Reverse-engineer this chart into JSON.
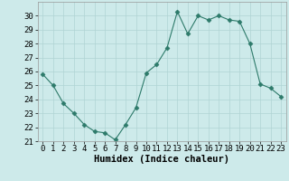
{
  "x": [
    0,
    1,
    2,
    3,
    4,
    5,
    6,
    7,
    8,
    9,
    10,
    11,
    12,
    13,
    14,
    15,
    16,
    17,
    18,
    19,
    20,
    21,
    22,
    23
  ],
  "y": [
    25.8,
    25.0,
    23.7,
    23.0,
    22.2,
    21.7,
    21.6,
    21.1,
    22.2,
    23.4,
    25.9,
    26.5,
    27.7,
    30.3,
    28.7,
    30.0,
    29.7,
    30.0,
    29.7,
    29.6,
    28.0,
    25.1,
    24.8,
    24.2
  ],
  "line_color": "#2d7a6a",
  "marker": "D",
  "marker_size": 2.5,
  "bg_color": "#cdeaea",
  "grid_color": "#b0d4d4",
  "xlabel": "Humidex (Indice chaleur)",
  "ylim": [
    21,
    31
  ],
  "xlim": [
    -0.5,
    23.5
  ],
  "yticks": [
    21,
    22,
    23,
    24,
    25,
    26,
    27,
    28,
    29,
    30
  ],
  "xticks": [
    0,
    1,
    2,
    3,
    4,
    5,
    6,
    7,
    8,
    9,
    10,
    11,
    12,
    13,
    14,
    15,
    16,
    17,
    18,
    19,
    20,
    21,
    22,
    23
  ],
  "xlabel_fontsize": 7.5,
  "tick_fontsize": 6.5
}
